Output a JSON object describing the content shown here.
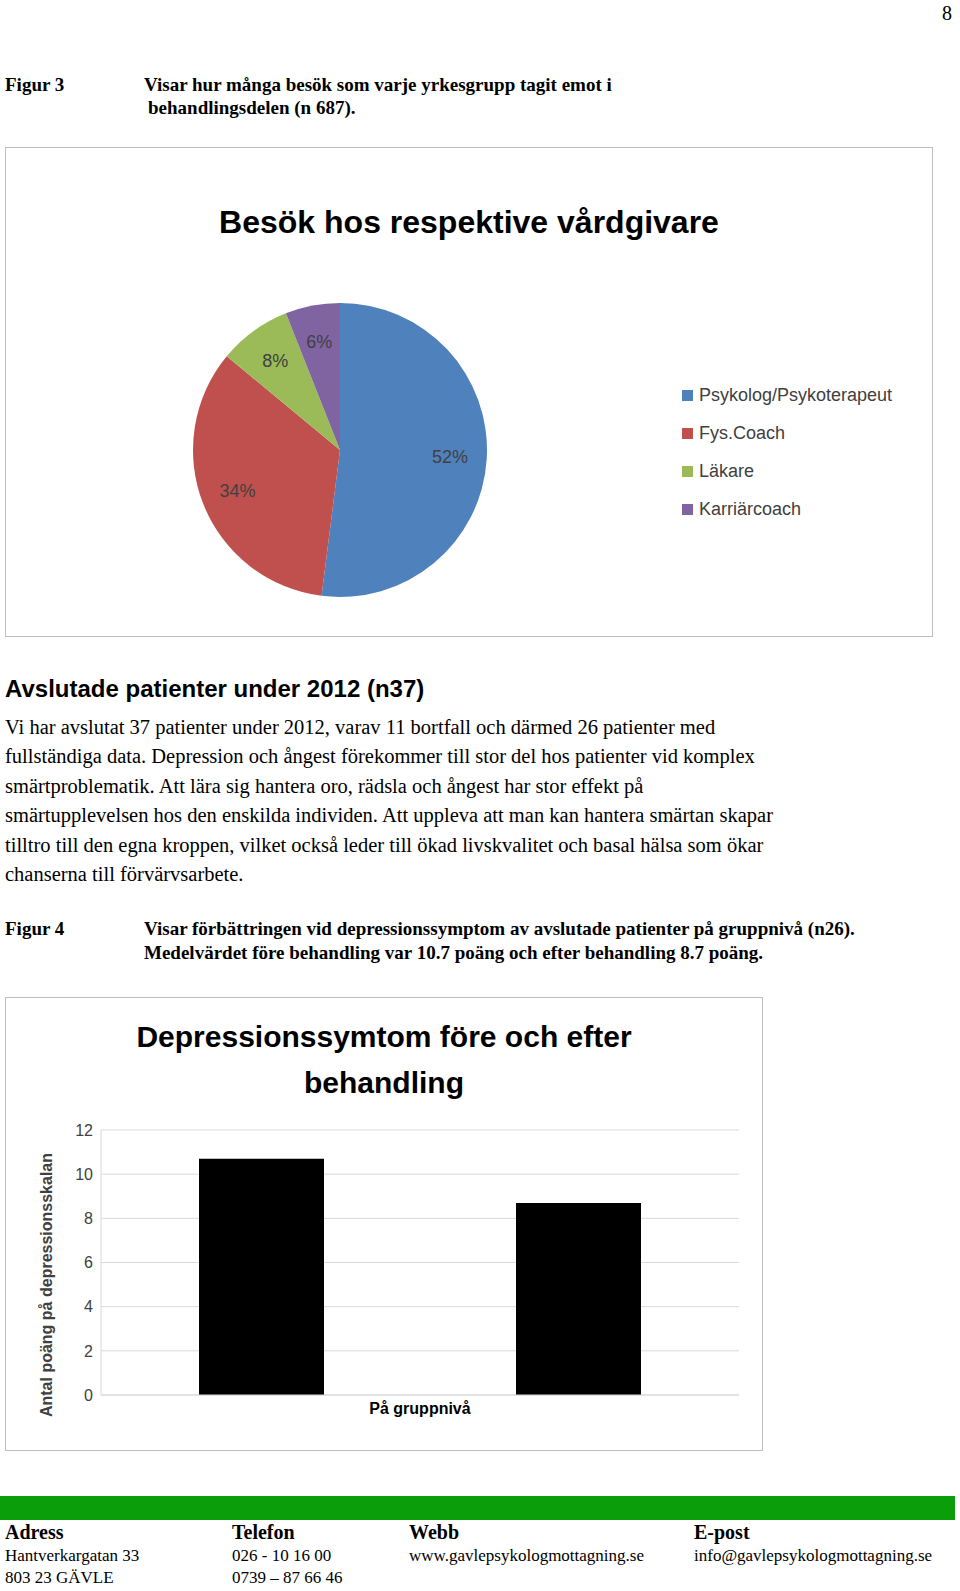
{
  "page_number": "8",
  "figure3": {
    "label": "Figur 3",
    "caption_lines": [
      "Visar hur många besök som varje yrkesgrupp tagit emot i",
      "behandlingsdelen (n 687)."
    ]
  },
  "section": {
    "heading": "Avslutade patienter under 2012 (n37)",
    "paragraph_lines": [
      "Vi har avslutat 37 patienter under 2012, varav 11 bortfall och därmed 26 patienter med",
      "fullständiga data. Depression och ångest förekommer till stor del hos patienter vid komplex",
      "smärtproblematik. Att lära sig hantera oro, rädsla och ångest har stor effekt på",
      "smärtupplevelsen hos den enskilda individen. Att uppleva att man kan hantera smärtan skapar",
      "tilltro till den egna kroppen, vilket också leder till ökad livskvalitet och basal hälsa som ökar",
      "chanserna till förvärvsarbete."
    ]
  },
  "figure4": {
    "label": "Figur 4",
    "caption_lines": [
      "Visar förbättringen vid depressionssymptom av avslutade patienter på gruppnivå (n26).",
      "Medelvärdet före behandling var 10.7 poäng och efter behandling 8.7 poäng."
    ]
  },
  "chart_data": [
    {
      "type": "pie",
      "title": "Besök hos respektive vårdgivare",
      "categories": [
        "Psykolog/Psykoterapeut",
        "Fys.Coach",
        "Läkare",
        "Karriärcoach"
      ],
      "values": [
        52,
        34,
        8,
        6
      ],
      "value_labels": [
        "52%",
        "34%",
        "8%",
        "6%"
      ],
      "colors": [
        "#4f81bd",
        "#c0504d",
        "#9bbb59",
        "#8064a2"
      ],
      "data_labels": true,
      "legend": "right"
    },
    {
      "type": "bar",
      "title": "Depressionssymtom före och efter behandling",
      "y_label": "Antal poäng på depressionsskalan",
      "categories": [
        "På gruppnivå"
      ],
      "series": [
        {
          "color": "#000000",
          "values": [
            10.7
          ]
        },
        {
          "color": "#000000",
          "values": [
            8.7
          ]
        }
      ],
      "ylim": [
        0,
        12
      ],
      "yticks": [
        0,
        2,
        4,
        6,
        8,
        10,
        12
      ],
      "grid": true
    }
  ],
  "footer": {
    "columns": [
      {
        "header": "Adress",
        "lines": [
          "Hantverkargatan 33",
          "803 23  GÄVLE"
        ]
      },
      {
        "header": "Telefon",
        "lines": [
          "026 - 10 16 00",
          "0739 – 87 66 46"
        ]
      },
      {
        "header": "Webb",
        "lines": [
          "www.gavlepsykologmottagning.se"
        ]
      },
      {
        "header": "E-post",
        "lines": [
          "info@gavlepsykologmottagning.se"
        ]
      }
    ]
  }
}
